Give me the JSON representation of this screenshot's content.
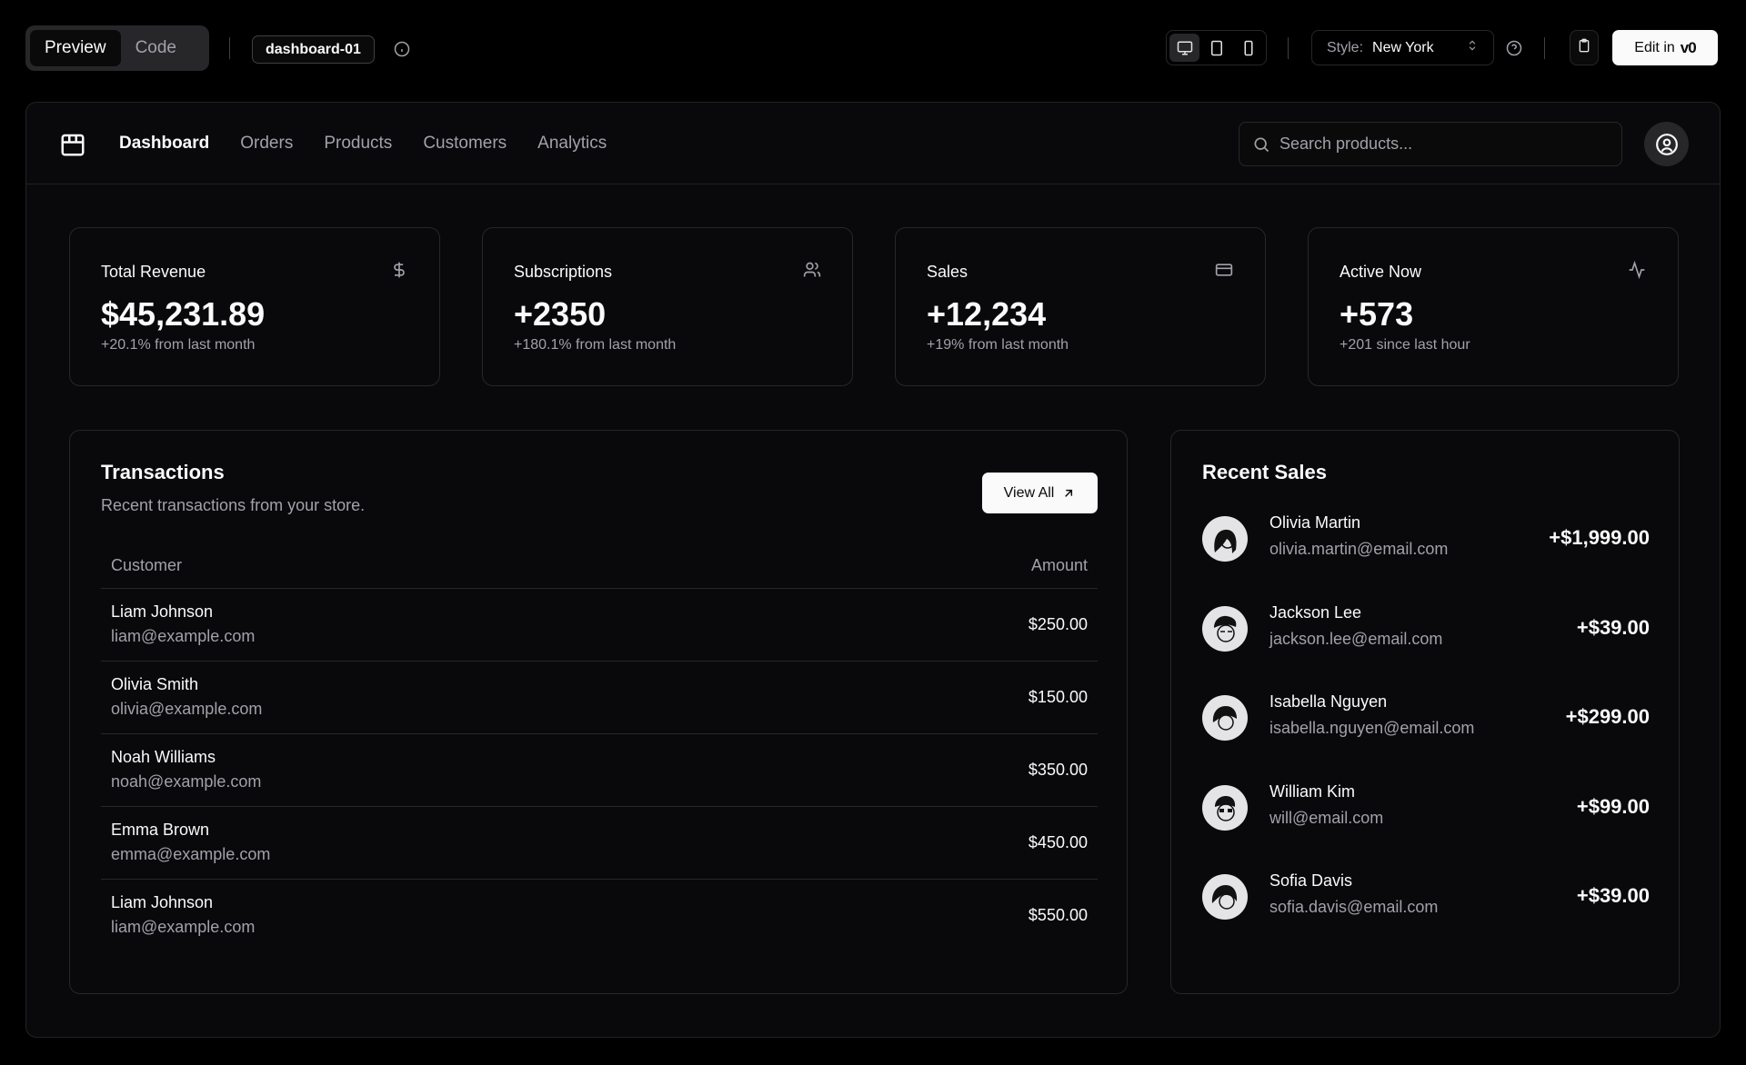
{
  "toolbar": {
    "tabs": [
      {
        "label": "Preview",
        "active": true
      },
      {
        "label": "Code",
        "active": false
      }
    ],
    "block_name": "dashboard-01",
    "style_label": "Style:",
    "style_value": "New York",
    "edit_label": "Edit in",
    "edit_logo": "v0"
  },
  "nav": {
    "links": [
      {
        "label": "Dashboard",
        "active": true
      },
      {
        "label": "Orders"
      },
      {
        "label": "Products"
      },
      {
        "label": "Customers"
      },
      {
        "label": "Analytics"
      }
    ],
    "search_placeholder": "Search products..."
  },
  "stats": [
    {
      "title": "Total Revenue",
      "value": "$45,231.89",
      "sub": "+20.1% from last month",
      "icon": "dollar-icon"
    },
    {
      "title": "Subscriptions",
      "value": "+2350",
      "sub": "+180.1% from last month",
      "icon": "users-icon"
    },
    {
      "title": "Sales",
      "value": "+12,234",
      "sub": "+19% from last month",
      "icon": "credit-card-icon"
    },
    {
      "title": "Active Now",
      "value": "+573",
      "sub": "+201 since last hour",
      "icon": "activity-icon"
    }
  ],
  "transactions": {
    "title": "Transactions",
    "subtitle": "Recent transactions from your store.",
    "view_all": "View All",
    "columns": [
      "Customer",
      "Amount"
    ],
    "rows": [
      {
        "name": "Liam Johnson",
        "email": "liam@example.com",
        "amount": "$250.00"
      },
      {
        "name": "Olivia Smith",
        "email": "olivia@example.com",
        "amount": "$150.00"
      },
      {
        "name": "Noah Williams",
        "email": "noah@example.com",
        "amount": "$350.00"
      },
      {
        "name": "Emma Brown",
        "email": "emma@example.com",
        "amount": "$450.00"
      },
      {
        "name": "Liam Johnson",
        "email": "liam@example.com",
        "amount": "$550.00"
      }
    ]
  },
  "recent_sales": {
    "title": "Recent Sales",
    "items": [
      {
        "name": "Olivia Martin",
        "email": "olivia.martin@email.com",
        "amount": "+$1,999.00"
      },
      {
        "name": "Jackson Lee",
        "email": "jackson.lee@email.com",
        "amount": "+$39.00"
      },
      {
        "name": "Isabella Nguyen",
        "email": "isabella.nguyen@email.com",
        "amount": "+$299.00"
      },
      {
        "name": "William Kim",
        "email": "will@email.com",
        "amount": "+$99.00"
      },
      {
        "name": "Sofia Davis",
        "email": "sofia.davis@email.com",
        "amount": "+$39.00"
      }
    ]
  }
}
